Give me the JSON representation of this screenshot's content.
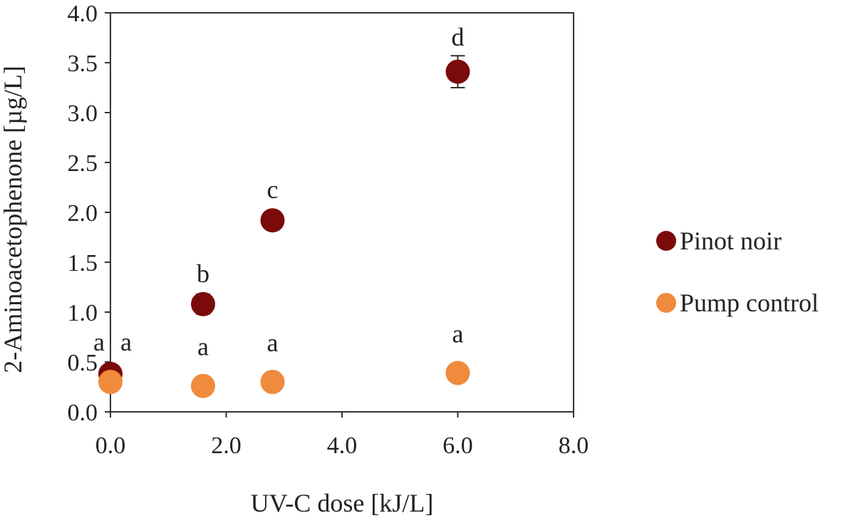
{
  "chart_data": {
    "type": "scatter",
    "xlabel": "UV-C dose [kJ/L]",
    "ylabel": "2-Aminoacetophenone [µg/L]",
    "xlim": [
      0,
      8
    ],
    "ylim": [
      0,
      4
    ],
    "x_ticks": [
      "0.0",
      "2.0",
      "4.0",
      "6.0",
      "8.0"
    ],
    "y_ticks": [
      "0.0",
      "0.5",
      "1.0",
      "1.5",
      "2.0",
      "2.5",
      "3.0",
      "3.5",
      "4.0"
    ],
    "grid": false,
    "legend_position": "right",
    "series": [
      {
        "name": "Pinot noir",
        "color": "#7b0a0a",
        "points": [
          {
            "x": 0.0,
            "y": 0.38,
            "err": 0.03,
            "label": "a"
          },
          {
            "x": 1.6,
            "y": 1.08,
            "err": 0.1,
            "label": "b"
          },
          {
            "x": 2.8,
            "y": 1.92,
            "err": 0.04,
            "label": "c"
          },
          {
            "x": 6.0,
            "y": 3.41,
            "err": 0.16,
            "label": "d"
          }
        ]
      },
      {
        "name": "Pump control",
        "color": "#f08a3c",
        "points": [
          {
            "x": 0.0,
            "y": 0.3,
            "err": 0.02,
            "label": "a"
          },
          {
            "x": 1.6,
            "y": 0.26,
            "err": 0.02,
            "label": "a"
          },
          {
            "x": 2.8,
            "y": 0.3,
            "err": 0.02,
            "label": "a"
          },
          {
            "x": 6.0,
            "y": 0.39,
            "err": 0.02,
            "label": "a"
          }
        ]
      }
    ]
  }
}
